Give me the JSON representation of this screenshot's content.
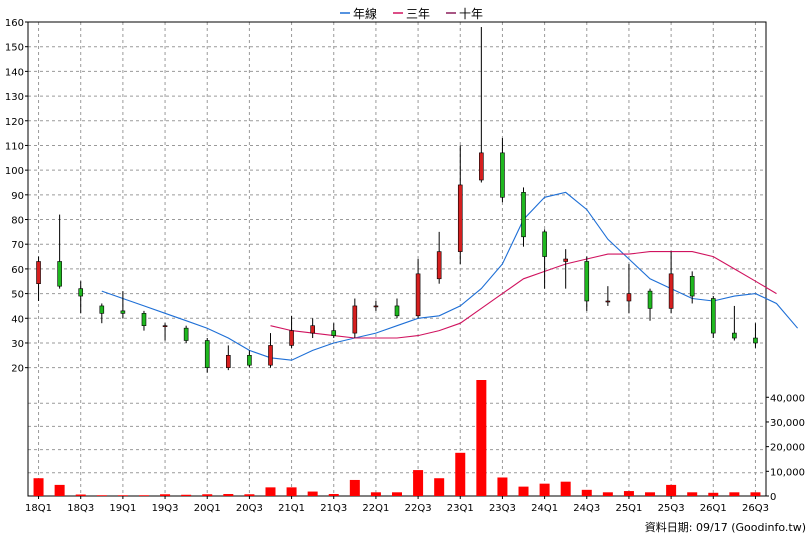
{
  "legend": [
    {
      "label": "年線",
      "color": "#1e6fd6"
    },
    {
      "label": "三年",
      "color": "#d0135f"
    },
    {
      "label": "十年",
      "color": "#8a1d5a"
    }
  ],
  "footer_text": "資料日期: 09/17  (Goodinfo.tw)",
  "colors": {
    "up": "#d61f1f",
    "down": "#1fb81f",
    "volume": "#ff0000",
    "grid": "#9a9a9a"
  },
  "chart_data": [
    {
      "type": "candlestick",
      "ylim": [
        15,
        160
      ],
      "yticks": [
        20,
        30,
        40,
        50,
        60,
        70,
        80,
        90,
        100,
        110,
        120,
        130,
        140,
        150,
        160
      ],
      "xtick_labels": [
        "18Q1",
        "18Q3",
        "19Q1",
        "19Q3",
        "20Q1",
        "20Q3",
        "21Q1",
        "21Q3",
        "22Q1",
        "22Q3",
        "23Q1",
        "23Q3",
        "24Q1",
        "24Q3",
        "25Q1",
        "25Q3",
        "26Q1",
        "26Q3"
      ],
      "candles": [
        {
          "o": 54,
          "h": 65,
          "l": 47,
          "c": 63
        },
        {
          "o": 63,
          "h": 82,
          "l": 52,
          "c": 53
        },
        {
          "o": 52,
          "h": 55,
          "l": 42,
          "c": 49
        },
        {
          "o": 45,
          "h": 46,
          "l": 38,
          "c": 42
        },
        {
          "o": 43,
          "h": 51,
          "l": 40,
          "c": 42
        },
        {
          "o": 42,
          "h": 43,
          "l": 35,
          "c": 37
        },
        {
          "o": 37,
          "h": 38,
          "l": 31,
          "c": 37
        },
        {
          "o": 36,
          "h": 37,
          "l": 30,
          "c": 31
        },
        {
          "o": 31,
          "h": 32,
          "l": 18,
          "c": 20
        },
        {
          "o": 20,
          "h": 29,
          "l": 19,
          "c": 25
        },
        {
          "o": 25,
          "h": 27,
          "l": 20,
          "c": 21
        },
        {
          "o": 21,
          "h": 34,
          "l": 20,
          "c": 29
        },
        {
          "o": 29,
          "h": 41,
          "l": 28,
          "c": 35
        },
        {
          "o": 34,
          "h": 40,
          "l": 32,
          "c": 37
        },
        {
          "o": 35,
          "h": 38,
          "l": 32,
          "c": 33
        },
        {
          "o": 34,
          "h": 48,
          "l": 32,
          "c": 45
        },
        {
          "o": 45,
          "h": 47,
          "l": 43,
          "c": 45
        },
        {
          "o": 45,
          "h": 48,
          "l": 40,
          "c": 41
        },
        {
          "o": 41,
          "h": 64,
          "l": 40,
          "c": 58
        },
        {
          "o": 56,
          "h": 75,
          "l": 54,
          "c": 67
        },
        {
          "o": 67,
          "h": 110,
          "l": 62,
          "c": 94
        },
        {
          "o": 96,
          "h": 158,
          "l": 95,
          "c": 107
        },
        {
          "o": 107,
          "h": 113,
          "l": 87,
          "c": 89
        },
        {
          "o": 91,
          "h": 93,
          "l": 69,
          "c": 73
        },
        {
          "o": 75,
          "h": 76,
          "l": 52,
          "c": 65
        },
        {
          "o": 63,
          "h": 68,
          "l": 52,
          "c": 64
        },
        {
          "o": 63,
          "h": 65,
          "l": 43,
          "c": 47
        },
        {
          "o": 47,
          "h": 53,
          "l": 45,
          "c": 47
        },
        {
          "o": 47,
          "h": 62,
          "l": 42,
          "c": 50
        },
        {
          "o": 51,
          "h": 52,
          "l": 39,
          "c": 44
        },
        {
          "o": 44,
          "h": 67,
          "l": 42,
          "c": 58
        },
        {
          "o": 57,
          "h": 59,
          "l": 46,
          "c": 49
        },
        {
          "o": 48,
          "h": 49,
          "l": 32,
          "c": 34
        },
        {
          "o": 34,
          "h": 45,
          "l": 31,
          "c": 32
        },
        {
          "o": 32,
          "h": 38,
          "l": 28,
          "c": 30
        }
      ],
      "series": [
        {
          "name": "年線",
          "x_index_start": 3,
          "values": [
            51,
            48,
            45,
            42,
            39,
            36,
            32,
            27,
            24,
            23,
            27,
            30,
            32,
            34,
            37,
            40,
            41,
            45,
            52,
            62,
            80,
            89,
            91,
            84,
            72,
            64,
            56,
            52,
            48,
            47,
            49,
            50,
            46,
            36
          ]
        },
        {
          "name": "三年",
          "x_index_start": 11,
          "values": [
            37,
            35,
            34,
            33,
            32,
            32,
            32,
            33,
            35,
            38,
            44,
            50,
            56,
            59,
            62,
            64,
            66,
            66,
            67,
            67,
            67,
            65,
            60,
            55,
            50
          ]
        }
      ]
    },
    {
      "type": "bar",
      "ylim": [
        0,
        47000
      ],
      "yticks": [
        0,
        10000,
        20000,
        30000,
        40000
      ],
      "ytick_labels": [
        "0",
        "10,000",
        "20,000",
        "30,000",
        "40,000"
      ],
      "values": [
        7200,
        4500,
        600,
        300,
        300,
        300,
        700,
        500,
        700,
        800,
        700,
        3500,
        3500,
        1800,
        800,
        6500,
        1500,
        1500,
        10500,
        7200,
        17500,
        47000,
        7500,
        3800,
        5000,
        5800,
        2500,
        1500,
        2000,
        1500,
        4500,
        1500,
        1300,
        1500,
        1500
      ]
    }
  ]
}
